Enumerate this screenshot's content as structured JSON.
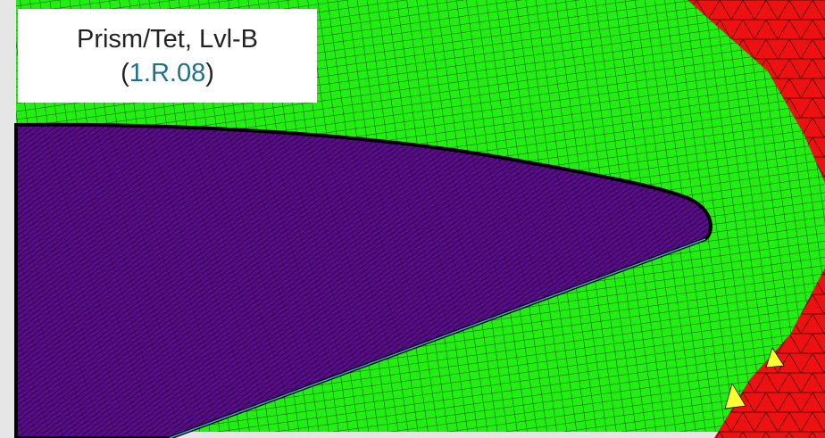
{
  "label": {
    "title": "Prism/Tet, Lvl-B",
    "open": "(",
    "code": "1.R.08",
    "close": ")"
  }
}
